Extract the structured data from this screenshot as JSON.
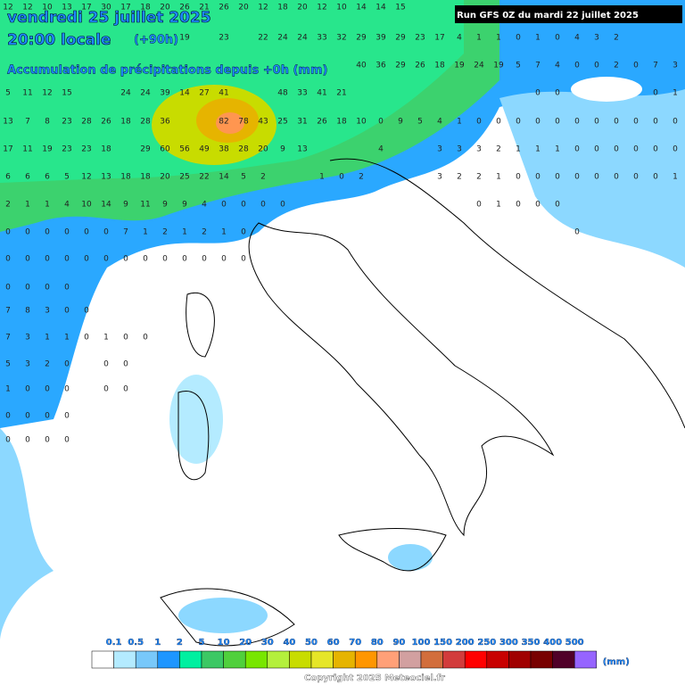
{
  "header": {
    "date": "vendredi 25 juillet 2025",
    "time": "20:00 locale",
    "lead": "(+90h)",
    "subtitle": "Accumulation de précipitations depuis +0h (mm)",
    "run": "Run GFS 0Z du mardi 22 juillet 2025"
  },
  "grid": {
    "rows": [
      [
        12,
        12,
        10,
        13,
        17,
        30,
        17,
        18,
        20,
        26,
        21,
        26,
        20,
        12,
        18,
        20,
        12,
        10,
        14,
        14,
        15,
        null,
        null,
        null,
        null,
        null,
        null,
        null,
        null,
        null,
        null,
        null,
        null,
        null,
        null
      ],
      [
        null,
        null,
        null,
        null,
        null,
        null,
        null,
        null,
        null,
        19,
        null,
        23,
        null,
        22,
        24,
        24,
        33,
        32,
        29,
        39,
        29,
        23,
        17,
        4,
        1,
        1,
        0,
        1,
        0,
        4,
        3,
        2
      ],
      [
        null,
        null,
        null,
        null,
        null,
        null,
        null,
        null,
        null,
        null,
        null,
        null,
        null,
        null,
        null,
        null,
        null,
        null,
        40,
        36,
        29,
        26,
        18,
        19,
        24,
        19,
        5,
        7,
        4,
        0,
        0,
        2,
        0,
        7,
        3
      ],
      [
        5,
        11,
        12,
        15,
        null,
        null,
        24,
        24,
        39,
        14,
        27,
        41,
        null,
        null,
        48,
        33,
        41,
        21,
        null,
        null,
        null,
        null,
        null,
        null,
        null,
        null,
        null,
        0,
        0,
        null,
        null,
        null,
        null,
        0,
        1
      ],
      [
        13,
        7,
        8,
        23,
        28,
        26,
        18,
        28,
        36,
        null,
        null,
        82,
        78,
        43,
        25,
        31,
        26,
        18,
        10,
        0,
        9,
        5,
        4,
        1,
        0,
        0,
        0,
        0,
        0,
        0,
        0,
        0,
        0,
        0,
        0
      ],
      [
        17,
        11,
        19,
        23,
        23,
        18,
        null,
        29,
        60,
        56,
        49,
        38,
        28,
        20,
        9,
        13,
        null,
        null,
        null,
        4,
        null,
        null,
        3,
        3,
        3,
        2,
        1,
        1,
        1,
        0,
        0,
        0,
        0,
        0,
        0
      ],
      [
        6,
        6,
        6,
        5,
        12,
        13,
        18,
        18,
        20,
        25,
        22,
        14,
        5,
        2,
        null,
        null,
        1,
        0,
        2,
        null,
        null,
        null,
        3,
        2,
        2,
        1,
        0,
        0,
        0,
        0,
        0,
        0,
        0,
        0,
        1
      ],
      [
        2,
        1,
        1,
        4,
        10,
        14,
        9,
        11,
        9,
        9,
        4,
        0,
        0,
        0,
        0,
        null,
        null,
        null,
        null,
        null,
        null,
        null,
        null,
        null,
        0,
        1,
        0,
        0,
        0
      ],
      [
        0,
        0,
        0,
        0,
        0,
        0,
        7,
        1,
        2,
        1,
        2,
        1,
        0,
        null,
        null,
        null,
        null,
        null,
        null,
        null,
        null,
        null,
        null,
        null,
        null,
        null,
        null,
        null,
        null,
        0
      ],
      [
        0,
        0,
        0,
        0,
        0,
        0,
        0,
        0,
        0,
        0,
        0,
        0,
        0
      ],
      [
        0,
        0,
        0,
        0
      ],
      [
        7,
        8,
        3,
        0,
        0
      ],
      [
        7,
        3,
        1,
        1,
        0,
        1,
        0,
        0
      ],
      [
        5,
        3,
        2,
        0,
        null,
        0,
        0
      ],
      [
        1,
        0,
        0,
        0,
        null,
        0,
        0
      ],
      [
        0,
        0,
        0,
        0
      ],
      [
        0,
        0,
        0,
        0
      ]
    ]
  },
  "legend": {
    "labels": [
      "0.1",
      "0.5",
      "1",
      "2",
      "5",
      "10",
      "20",
      "30",
      "40",
      "50",
      "60",
      "70",
      "80",
      "90",
      "100",
      "150",
      "200",
      "250",
      "300",
      "350",
      "400",
      "500"
    ],
    "unit": "(mm)",
    "colors": [
      "#ffffff",
      "#b4ebff",
      "#78c8fa",
      "#1e96ff",
      "#00f0a0",
      "#3cc864",
      "#50d03c",
      "#78e600",
      "#b4f03c",
      "#c8dc00",
      "#e6e628",
      "#e6b400",
      "#ff9600",
      "#ffa078",
      "#d2a0a0",
      "#d26e3c",
      "#d23c3c",
      "#ff0000",
      "#c80000",
      "#a00000",
      "#780000",
      "#500028",
      "#9664ff"
    ]
  },
  "footer": {
    "copyright": "Copyright 2025 Meteociel.fr"
  }
}
